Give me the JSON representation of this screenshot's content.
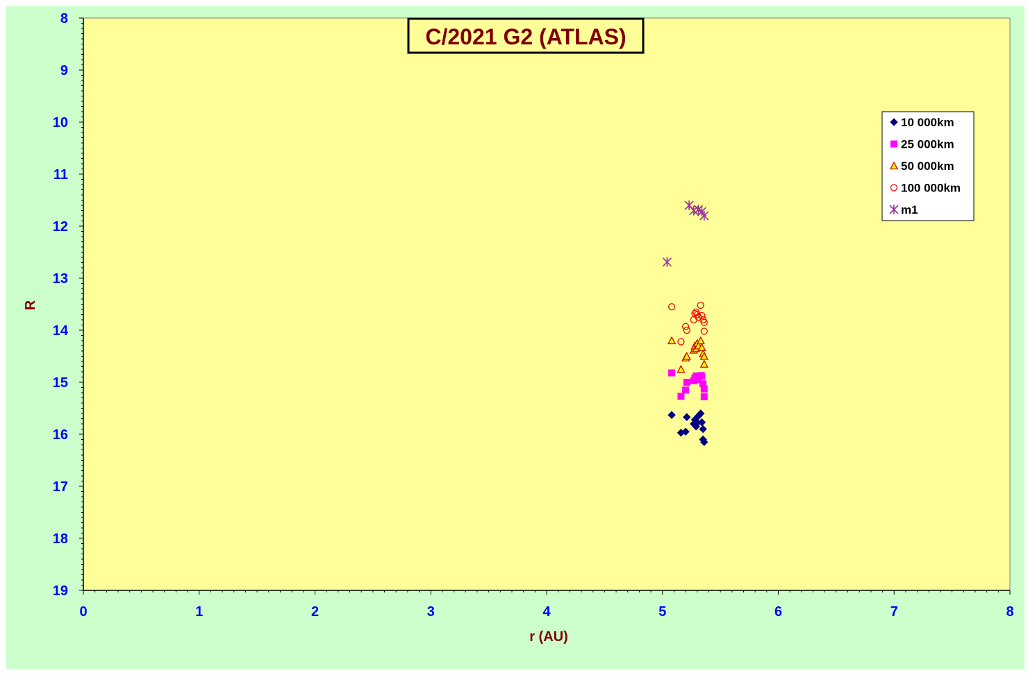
{
  "chart_data": {
    "type": "scatter",
    "title": "C/2021 G2 (ATLAS)",
    "xlabel": "r (AU)",
    "ylabel": "R",
    "xlim": [
      0,
      8
    ],
    "ylim": [
      8,
      19
    ],
    "y_inverted": true,
    "x_ticks": [
      "0",
      "1",
      "2",
      "3",
      "4",
      "5",
      "6",
      "7",
      "8"
    ],
    "y_ticks": [
      "8",
      "9",
      "10",
      "11",
      "12",
      "13",
      "14",
      "15",
      "16",
      "17",
      "18",
      "19"
    ],
    "grid": false,
    "legend_position": "top-right",
    "colors": {
      "background": "#ccffcc",
      "plot_area": "#ffff99",
      "axis_title": "#800000",
      "tick_label": "#0000ff"
    },
    "series": [
      {
        "name": "10 000km",
        "marker": "diamond",
        "color": "#000080",
        "points": [
          [
            5.08,
            15.63
          ],
          [
            5.16,
            15.97
          ],
          [
            5.2,
            15.95
          ],
          [
            5.21,
            15.67
          ],
          [
            5.27,
            15.8
          ],
          [
            5.28,
            15.72
          ],
          [
            5.29,
            15.85
          ],
          [
            5.3,
            15.78
          ],
          [
            5.31,
            15.65
          ],
          [
            5.33,
            15.6
          ],
          [
            5.34,
            15.77
          ],
          [
            5.35,
            15.9
          ],
          [
            5.35,
            16.1
          ],
          [
            5.36,
            16.15
          ]
        ]
      },
      {
        "name": "25 000km",
        "marker": "square",
        "color": "#ff00ff",
        "points": [
          [
            5.08,
            14.82
          ],
          [
            5.16,
            15.27
          ],
          [
            5.2,
            15.15
          ],
          [
            5.21,
            15.0
          ],
          [
            5.27,
            14.97
          ],
          [
            5.28,
            14.92
          ],
          [
            5.29,
            14.88
          ],
          [
            5.3,
            14.9
          ],
          [
            5.31,
            14.95
          ],
          [
            5.33,
            14.87
          ],
          [
            5.34,
            14.88
          ],
          [
            5.35,
            15.03
          ],
          [
            5.36,
            15.13
          ],
          [
            5.36,
            15.28
          ]
        ]
      },
      {
        "name": "50 000km",
        "marker": "triangle",
        "color": "#cc0000",
        "fill": "#ffff00",
        "points": [
          [
            5.08,
            14.2
          ],
          [
            5.16,
            14.75
          ],
          [
            5.2,
            14.53
          ],
          [
            5.21,
            14.5
          ],
          [
            5.27,
            14.38
          ],
          [
            5.28,
            14.3
          ],
          [
            5.29,
            14.35
          ],
          [
            5.3,
            14.25
          ],
          [
            5.31,
            14.3
          ],
          [
            5.33,
            14.2
          ],
          [
            5.34,
            14.33
          ],
          [
            5.35,
            14.45
          ],
          [
            5.36,
            14.5
          ],
          [
            5.36,
            14.65
          ]
        ]
      },
      {
        "name": "100 000km",
        "marker": "circle",
        "color": "#ff0000",
        "points": [
          [
            5.08,
            13.55
          ],
          [
            5.16,
            14.22
          ],
          [
            5.2,
            13.93
          ],
          [
            5.21,
            14.0
          ],
          [
            5.27,
            13.8
          ],
          [
            5.28,
            13.68
          ],
          [
            5.29,
            13.65
          ],
          [
            5.3,
            13.7
          ],
          [
            5.31,
            13.75
          ],
          [
            5.33,
            13.52
          ],
          [
            5.34,
            13.72
          ],
          [
            5.35,
            13.8
          ],
          [
            5.36,
            13.85
          ],
          [
            5.36,
            14.02
          ]
        ]
      },
      {
        "name": "m1",
        "marker": "star",
        "color": "#993399",
        "points": [
          [
            5.04,
            12.69
          ],
          [
            5.23,
            11.6
          ],
          [
            5.27,
            11.7
          ],
          [
            5.31,
            11.68
          ],
          [
            5.34,
            11.72
          ],
          [
            5.36,
            11.8
          ]
        ]
      }
    ]
  }
}
